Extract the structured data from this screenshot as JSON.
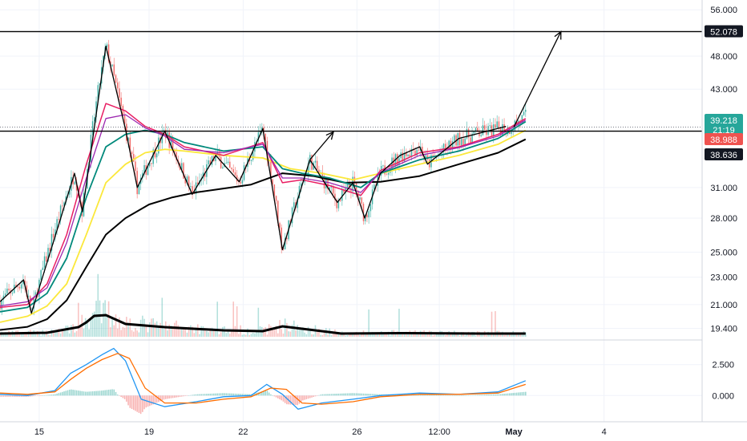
{
  "chart_data": {
    "type": "line",
    "title": "",
    "price_axis": {
      "scale": "log",
      "ticks": [
        "56.000",
        "48.000",
        "43.000",
        "31.000",
        "28.000",
        "25.000",
        "23.000",
        "21.000",
        "19.400"
      ],
      "tick_values": [
        56,
        48,
        43,
        31,
        28,
        25,
        23,
        21,
        19.4
      ]
    },
    "time_axis": {
      "ticks": [
        {
          "label": "15",
          "bold": false
        },
        {
          "label": "19",
          "bold": false
        },
        {
          "label": "22",
          "bold": false
        },
        {
          "label": "26",
          "bold": false
        },
        {
          "label": "12:00",
          "bold": false
        },
        {
          "label": "May",
          "bold": true
        },
        {
          "label": "4",
          "bold": false
        }
      ],
      "tick_index": [
        8,
        36,
        60,
        89,
        110,
        129,
        152
      ],
      "last_index": 132,
      "range": [
        -2,
        177
      ]
    },
    "price_badges": [
      {
        "value": "52.078",
        "color": "#131722"
      },
      {
        "value": "39.218",
        "sub": "21:19",
        "color": "#26a69a"
      },
      {
        "value": "38.988",
        "color": "#ef5350"
      },
      {
        "value": "38.636",
        "color": "#131722"
      }
    ],
    "horizontal_levels": [
      {
        "value": 52.078,
        "style": "solid",
        "color": "#000000"
      },
      {
        "value": 37.4,
        "style": "solid",
        "color": "#000000"
      },
      {
        "value": 37.9,
        "style": "dotted",
        "color": "#787b86"
      }
    ],
    "colors": {
      "up": "#26a69a",
      "down": "#ef5350",
      "ma_teal": "#00897b",
      "ma_red": "#e91e63",
      "ma_purple": "#9c27b0",
      "ma_yellow": "#fbe83b",
      "ma_black": "#000000"
    },
    "zigzag": [
      [
        -2,
        21.2
      ],
      [
        4,
        22.8
      ],
      [
        6,
        20.4
      ],
      [
        17,
        32.5
      ],
      [
        19,
        28.6
      ],
      [
        25,
        49.6
      ],
      [
        30,
        37.6
      ],
      [
        33,
        31.0
      ],
      [
        40,
        37.4
      ],
      [
        47,
        30.3
      ],
      [
        53,
        34.5
      ],
      [
        59,
        31.6
      ],
      [
        65,
        37.7
      ],
      [
        70,
        25.2
      ],
      [
        77,
        34.0
      ],
      [
        84,
        29.5
      ],
      [
        88,
        31.5
      ],
      [
        91,
        28.0
      ],
      [
        95,
        32.5
      ],
      [
        100,
        34.5
      ],
      [
        105,
        35.5
      ],
      [
        107,
        33.5
      ],
      [
        115,
        36.5
      ],
      [
        127,
        38.0
      ]
    ],
    "arrows": [
      {
        "from": [
          77,
          34.0
        ],
        "to": [
          83,
          37.3
        ]
      },
      {
        "from": [
          129,
          37.9
        ],
        "to": [
          141,
          52.078
        ]
      }
    ],
    "price_series": [
      {
        "name": "",
        "color": "#000000",
        "width": 2,
        "x": [
          -2,
          5,
          10,
          15,
          20,
          25,
          30,
          36,
          42,
          48,
          55,
          62,
          70,
          78,
          86,
          95,
          105,
          115,
          125,
          132
        ],
        "y": [
          19.3,
          19.5,
          20.0,
          21.3,
          23.8,
          26.5,
          28.0,
          29.3,
          30.0,
          30.5,
          30.9,
          31.3,
          32.5,
          32.2,
          31.5,
          31.6,
          32.2,
          33.5,
          34.8,
          36.4
        ]
      },
      {
        "name": "",
        "color": "#fbe83b",
        "width": 1.8,
        "x": [
          -2,
          5,
          10,
          15,
          20,
          25,
          30,
          35,
          40,
          45,
          55,
          65,
          72,
          80,
          88,
          95,
          105,
          115,
          125,
          132
        ],
        "y": [
          19.8,
          20.2,
          20.9,
          22.5,
          26.5,
          31.5,
          33.5,
          34.8,
          35.2,
          35.0,
          34.5,
          34.2,
          33.0,
          32.5,
          31.8,
          32.5,
          33.5,
          34.5,
          35.8,
          37.5
        ]
      },
      {
        "name": "",
        "color": "#00897b",
        "width": 1.8,
        "x": [
          -2,
          5,
          10,
          15,
          20,
          25,
          30,
          35,
          40,
          45,
          55,
          65,
          70,
          75,
          82,
          90,
          95,
          105,
          115,
          125,
          132
        ],
        "y": [
          20.5,
          20.8,
          21.8,
          24.5,
          30.0,
          35.5,
          37.0,
          37.5,
          37.0,
          36.0,
          35.0,
          35.5,
          33.0,
          32.5,
          32.0,
          31.0,
          32.5,
          34.0,
          35.0,
          36.5,
          38.6
        ]
      },
      {
        "name": "",
        "color": "#e91e63",
        "width": 1.5,
        "x": [
          -2,
          5,
          10,
          15,
          20,
          25,
          30,
          35,
          40,
          45,
          55,
          65,
          70,
          75,
          82,
          90,
          95,
          105,
          115,
          125,
          132
        ],
        "y": [
          20.8,
          21.0,
          22.5,
          26.5,
          33.5,
          41.0,
          40.0,
          38.0,
          37.0,
          35.5,
          34.5,
          36.0,
          31.5,
          31.8,
          31.2,
          30.2,
          32.8,
          34.8,
          35.5,
          37.0,
          39.0
        ]
      },
      {
        "name": "",
        "color": "#9c27b0",
        "width": 1.3,
        "x": [
          -2,
          5,
          10,
          15,
          20,
          25,
          30,
          35,
          40,
          45,
          55,
          65,
          70,
          75,
          82,
          90,
          95,
          105,
          115,
          125,
          132
        ],
        "y": [
          20.9,
          21.2,
          22.2,
          25.8,
          32.0,
          39.0,
          39.5,
          37.8,
          36.8,
          35.2,
          34.8,
          35.8,
          32.0,
          32.0,
          31.5,
          30.5,
          32.6,
          34.5,
          35.4,
          36.8,
          38.8
        ]
      }
    ],
    "volume_ma": {
      "color": "#000000",
      "x": [
        -2,
        10,
        18,
        20,
        22,
        25,
        30,
        40,
        55,
        65,
        70,
        75,
        85,
        100,
        120,
        132
      ],
      "y": [
        0.4,
        0.5,
        1.2,
        1.8,
        2.6,
        2.7,
        1.6,
        1.2,
        0.8,
        0.7,
        1.3,
        1.0,
        0.4,
        0.45,
        0.4,
        0.4
      ]
    },
    "volume_axis_range": [
      0,
      6
    ],
    "oscillator": {
      "ticks": [
        "2.500",
        "0.000"
      ],
      "tick_values": [
        2.5,
        0
      ],
      "range": [
        -1.6,
        4.1
      ],
      "macd": {
        "color": "#2196f3",
        "x": [
          -2,
          5,
          12,
          16,
          20,
          24,
          27,
          30,
          34,
          40,
          48,
          55,
          62,
          66,
          70,
          74,
          80,
          88,
          95,
          105,
          115,
          125,
          132
        ],
        "y": [
          0.1,
          0.0,
          0.4,
          1.8,
          2.5,
          3.3,
          3.8,
          2.8,
          -0.3,
          -0.9,
          -0.5,
          -0.1,
          0.0,
          0.9,
          0.1,
          -1.1,
          -0.6,
          -0.3,
          0.0,
          0.2,
          0.1,
          0.3,
          1.2
        ]
      },
      "signal": {
        "color": "#ff6d00",
        "x": [
          -2,
          5,
          12,
          16,
          20,
          24,
          28,
          31,
          35,
          40,
          48,
          55,
          62,
          67,
          71,
          75,
          80,
          88,
          95,
          105,
          115,
          125,
          132
        ],
        "y": [
          0.2,
          0.1,
          0.3,
          1.3,
          2.2,
          2.9,
          3.4,
          3.0,
          0.6,
          -0.6,
          -0.6,
          -0.3,
          -0.1,
          0.6,
          0.5,
          -0.6,
          -0.7,
          -0.5,
          -0.1,
          0.1,
          0.1,
          0.2,
          0.9
        ]
      }
    }
  }
}
